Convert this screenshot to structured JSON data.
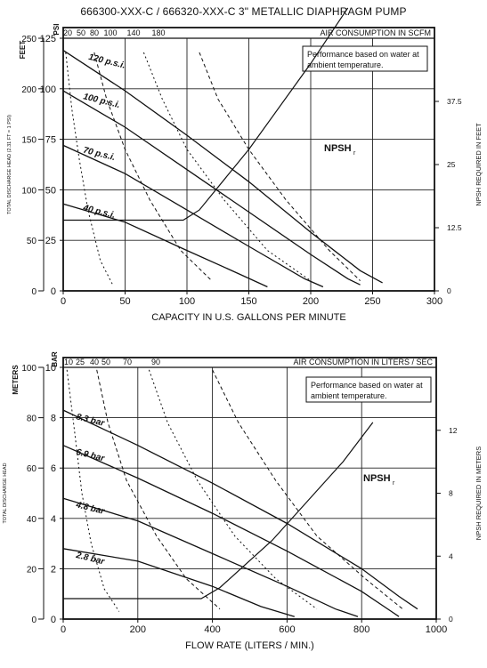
{
  "title": "666300-XXX-C / 666320-XXX-C   3\" METALLIC DIAPHRAGM PUMP",
  "chart_data": [
    {
      "type": "line",
      "units": "US",
      "xlabel": "CAPACITY IN U.S. GALLONS PER MINUTE",
      "xlim": [
        0,
        300
      ],
      "xticks": [
        0,
        50,
        100,
        150,
        200,
        250,
        300
      ],
      "ylim": [
        0,
        125
      ],
      "yticks": [
        0,
        25,
        50,
        75,
        100,
        125
      ],
      "yticks_minor_labels": [
        0,
        50,
        100,
        150,
        200,
        250
      ],
      "ylabel_left_outer": "FEET",
      "ylabel_left_outer2": "PSI",
      "ylabel_left": "TOTAL DISCHARGE HEAD (2.31 FT = 1 PSI)",
      "ylabel_right": "NPSH REQUIRED IN FEET",
      "y2ticks": [
        0,
        12.5,
        25,
        37.5
      ],
      "y2lim": [
        0,
        50
      ],
      "top_axis_label": "AIR CONSUMPTION IN SCFM",
      "top_ticks": [
        20,
        50,
        80,
        100,
        140,
        180
      ],
      "note": "Performance based on water at ambient temperature.",
      "npsh_label": "NPSH",
      "npsh_sub": "r",
      "grid": true,
      "series": [
        {
          "name": "120 p.s.i.",
          "x": [
            0,
            50,
            100,
            150,
            200,
            240,
            258
          ],
          "y": [
            119,
            99,
            77,
            54,
            29,
            10,
            4
          ]
        },
        {
          "name": "100 p.s.i.",
          "x": [
            0,
            50,
            100,
            150,
            200,
            230,
            240
          ],
          "y": [
            99,
            81,
            60,
            39,
            18,
            6,
            3
          ]
        },
        {
          "name": "70 p.s.i.",
          "x": [
            0,
            50,
            100,
            150,
            195,
            210
          ],
          "y": [
            72,
            58,
            40,
            22,
            6,
            2
          ]
        },
        {
          "name": "40 p.s.i.",
          "x": [
            0,
            50,
            100,
            140,
            165
          ],
          "y": [
            43,
            34,
            20,
            9,
            2
          ]
        }
      ],
      "air_curves": [
        {
          "x": [
            2,
            7,
            13,
            20,
            30,
            40
          ],
          "y": [
            118,
            90,
            65,
            40,
            15,
            3
          ]
        },
        {
          "x": [
            25,
            35,
            50,
            70,
            95,
            120
          ],
          "y": [
            118,
            95,
            70,
            45,
            20,
            5
          ]
        },
        {
          "x": [
            65,
            80,
            100,
            130,
            165,
            200
          ],
          "y": [
            118,
            95,
            70,
            45,
            20,
            5
          ]
        },
        {
          "x": [
            110,
            125,
            150,
            180,
            215,
            240
          ],
          "y": [
            118,
            95,
            70,
            45,
            20,
            5
          ]
        }
      ],
      "npsh_curve": {
        "x": [
          0,
          97,
          110,
          150,
          200,
          230
        ],
        "y2": [
          14,
          14,
          16,
          28,
          45,
          56
        ]
      }
    },
    {
      "type": "line",
      "units": "metric",
      "xlabel": "FLOW RATE (LITERS / MIN.)",
      "xlim": [
        0,
        1000
      ],
      "xticks": [
        0,
        200,
        400,
        600,
        800,
        1000
      ],
      "ylim": [
        0,
        10
      ],
      "yticks": [
        0,
        2,
        4,
        6,
        8,
        10
      ],
      "yticks_meters": [
        0,
        20,
        40,
        60,
        80,
        100
      ],
      "ylabel_left_outer": "METERS",
      "ylabel_left_outer2": "BAR",
      "ylabel_left": "TOTAL DISCHARGE HEAD",
      "ylabel_right": "NPSH REQUIRED IN METERS",
      "y2ticks": [
        0,
        4,
        8,
        12
      ],
      "y2lim": [
        0,
        16
      ],
      "top_axis_label": "AIR CONSUMPTION IN LITERS / SEC",
      "top_ticks": [
        10,
        25,
        40,
        50,
        70,
        90
      ],
      "note": "Performance based on water at ambient temperature.",
      "npsh_label": "NPSH",
      "npsh_sub": "r",
      "grid": true,
      "series": [
        {
          "name": "8.3 bar",
          "x": [
            0,
            200,
            400,
            600,
            800,
            900,
            950
          ],
          "y": [
            8.3,
            6.9,
            5.4,
            3.8,
            2.0,
            0.9,
            0.4
          ]
        },
        {
          "name": "6.9 bar",
          "x": [
            0,
            200,
            400,
            600,
            800,
            880,
            900
          ],
          "y": [
            6.9,
            5.6,
            4.2,
            2.7,
            1.1,
            0.3,
            0.1
          ]
        },
        {
          "name": "4.8 bar",
          "x": [
            0,
            200,
            400,
            600,
            730,
            790
          ],
          "y": [
            4.8,
            3.9,
            2.6,
            1.3,
            0.4,
            0.1
          ]
        },
        {
          "name": "2.8 bar",
          "x": [
            0,
            200,
            400,
            530,
            620
          ],
          "y": [
            2.8,
            2.3,
            1.3,
            0.5,
            0.1
          ]
        }
      ],
      "air_curves": [
        {
          "x": [
            10,
            30,
            50,
            75,
            110,
            150
          ],
          "y": [
            9.9,
            7.5,
            5.0,
            3.0,
            1.2,
            0.3
          ]
        },
        {
          "x": [
            90,
            120,
            170,
            250,
            330,
            420
          ],
          "y": [
            9.9,
            7.8,
            5.5,
            3.3,
            1.6,
            0.4
          ]
        },
        {
          "x": [
            230,
            280,
            360,
            460,
            570,
            680
          ],
          "y": [
            9.9,
            7.8,
            5.5,
            3.3,
            1.6,
            0.4
          ]
        },
        {
          "x": [
            400,
            470,
            570,
            680,
            810,
            910
          ],
          "y": [
            9.9,
            7.8,
            5.5,
            3.3,
            1.6,
            0.4
          ]
        }
      ],
      "npsh_curve": {
        "x": [
          0,
          370,
          420,
          560,
          750,
          830
        ],
        "y2": [
          1.3,
          1.3,
          2.0,
          5.0,
          10.0,
          12.5
        ]
      }
    }
  ]
}
